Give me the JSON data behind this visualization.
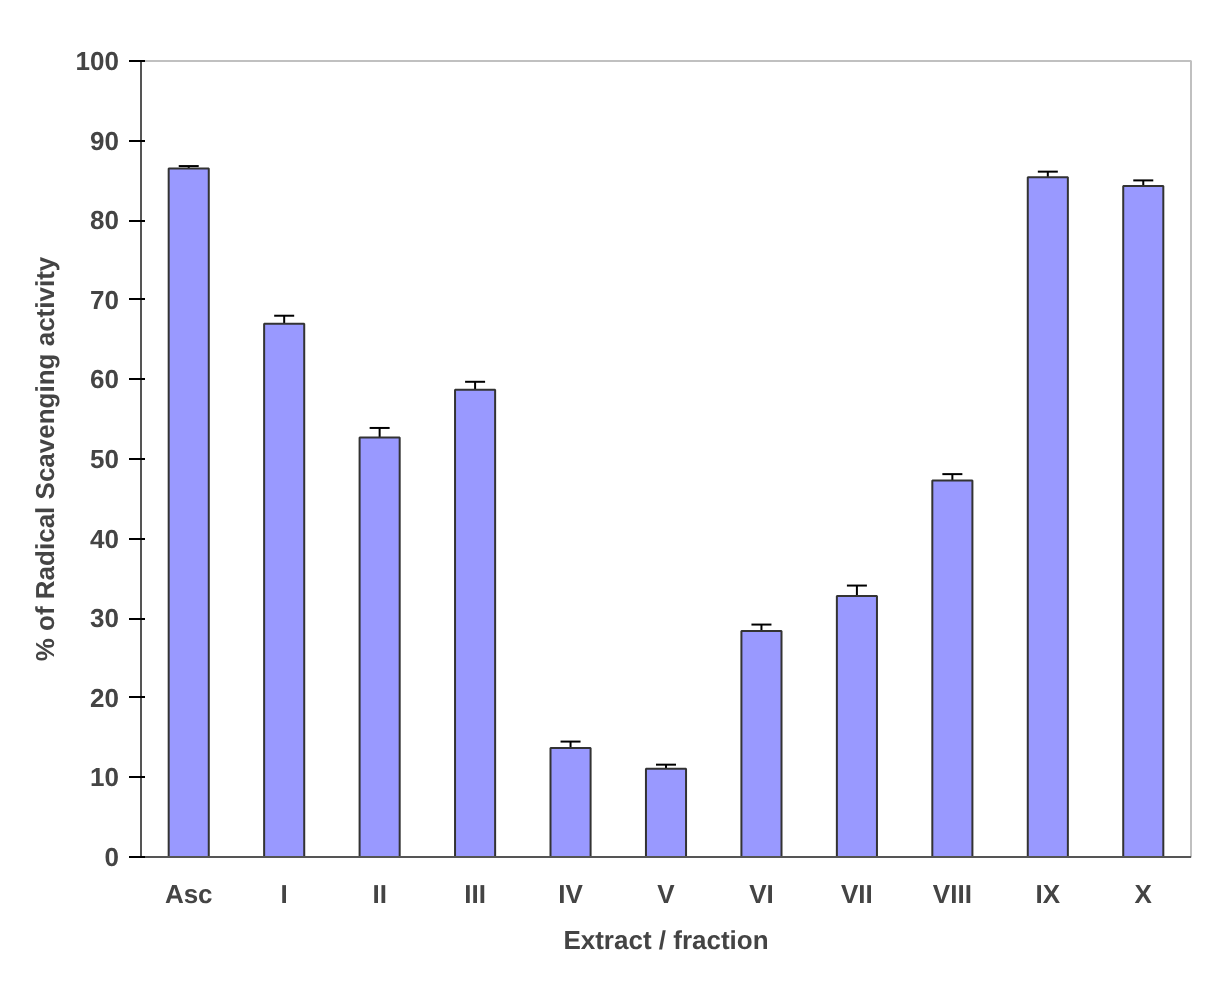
{
  "chart_data": {
    "type": "bar",
    "xlabel": "Extract / fraction",
    "ylabel": "% of Radical Scavenging activity",
    "categories": [
      "Asc",
      "I",
      "II",
      "III",
      "IV",
      "V",
      "VI",
      "VII",
      "VIII",
      "IX",
      "X"
    ],
    "values": [
      86.5,
      67.0,
      52.7,
      58.7,
      13.7,
      11.1,
      28.4,
      32.8,
      47.3,
      85.4,
      84.3
    ],
    "errors": [
      0.3,
      1.0,
      1.2,
      1.0,
      0.8,
      0.5,
      0.8,
      1.3,
      0.8,
      0.7,
      0.7
    ],
    "color": "#9999ff",
    "ylim": [
      0,
      100
    ],
    "yticks": [
      0,
      10,
      20,
      30,
      40,
      50,
      60,
      70,
      80,
      90,
      100
    ],
    "grid": false
  }
}
